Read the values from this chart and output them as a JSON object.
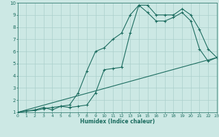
{
  "xlabel": "Humidex (Indice chaleur)",
  "bg_color": "#cce8e4",
  "line_color": "#1a6b5e",
  "grid_color": "#aacfcb",
  "xlim": [
    0,
    23
  ],
  "ylim": [
    1,
    10
  ],
  "xticks": [
    0,
    1,
    2,
    3,
    4,
    5,
    6,
    7,
    8,
    9,
    10,
    11,
    12,
    13,
    14,
    15,
    16,
    17,
    18,
    19,
    20,
    21,
    22,
    23
  ],
  "yticks": [
    1,
    2,
    3,
    4,
    5,
    6,
    7,
    8,
    9,
    10
  ],
  "line1_x": [
    0,
    1,
    2,
    3,
    4,
    5,
    6,
    7,
    8,
    9,
    10,
    11,
    12,
    13,
    14,
    15,
    16,
    17,
    18,
    19,
    20,
    21,
    22,
    23
  ],
  "line1_y": [
    1.0,
    1.1,
    1.15,
    1.3,
    1.4,
    1.5,
    1.6,
    2.6,
    4.4,
    6.0,
    6.3,
    7.0,
    7.5,
    9.0,
    9.8,
    9.8,
    9.0,
    9.0,
    9.0,
    9.5,
    9.0,
    7.8,
    6.2,
    5.5
  ],
  "line2_x": [
    0,
    1,
    2,
    3,
    4,
    5,
    6,
    7,
    8,
    9,
    10,
    11,
    12,
    13,
    14,
    15,
    16,
    17,
    18,
    19,
    20,
    21,
    22,
    23
  ],
  "line2_y": [
    1.0,
    1.1,
    1.2,
    1.4,
    1.2,
    1.5,
    1.4,
    1.5,
    1.6,
    2.6,
    4.5,
    4.6,
    4.7,
    7.5,
    9.8,
    9.2,
    8.5,
    8.5,
    8.8,
    9.2,
    8.5,
    6.2,
    5.2,
    5.5
  ],
  "line3_x": [
    0,
    23
  ],
  "line3_y": [
    1.0,
    5.5
  ]
}
